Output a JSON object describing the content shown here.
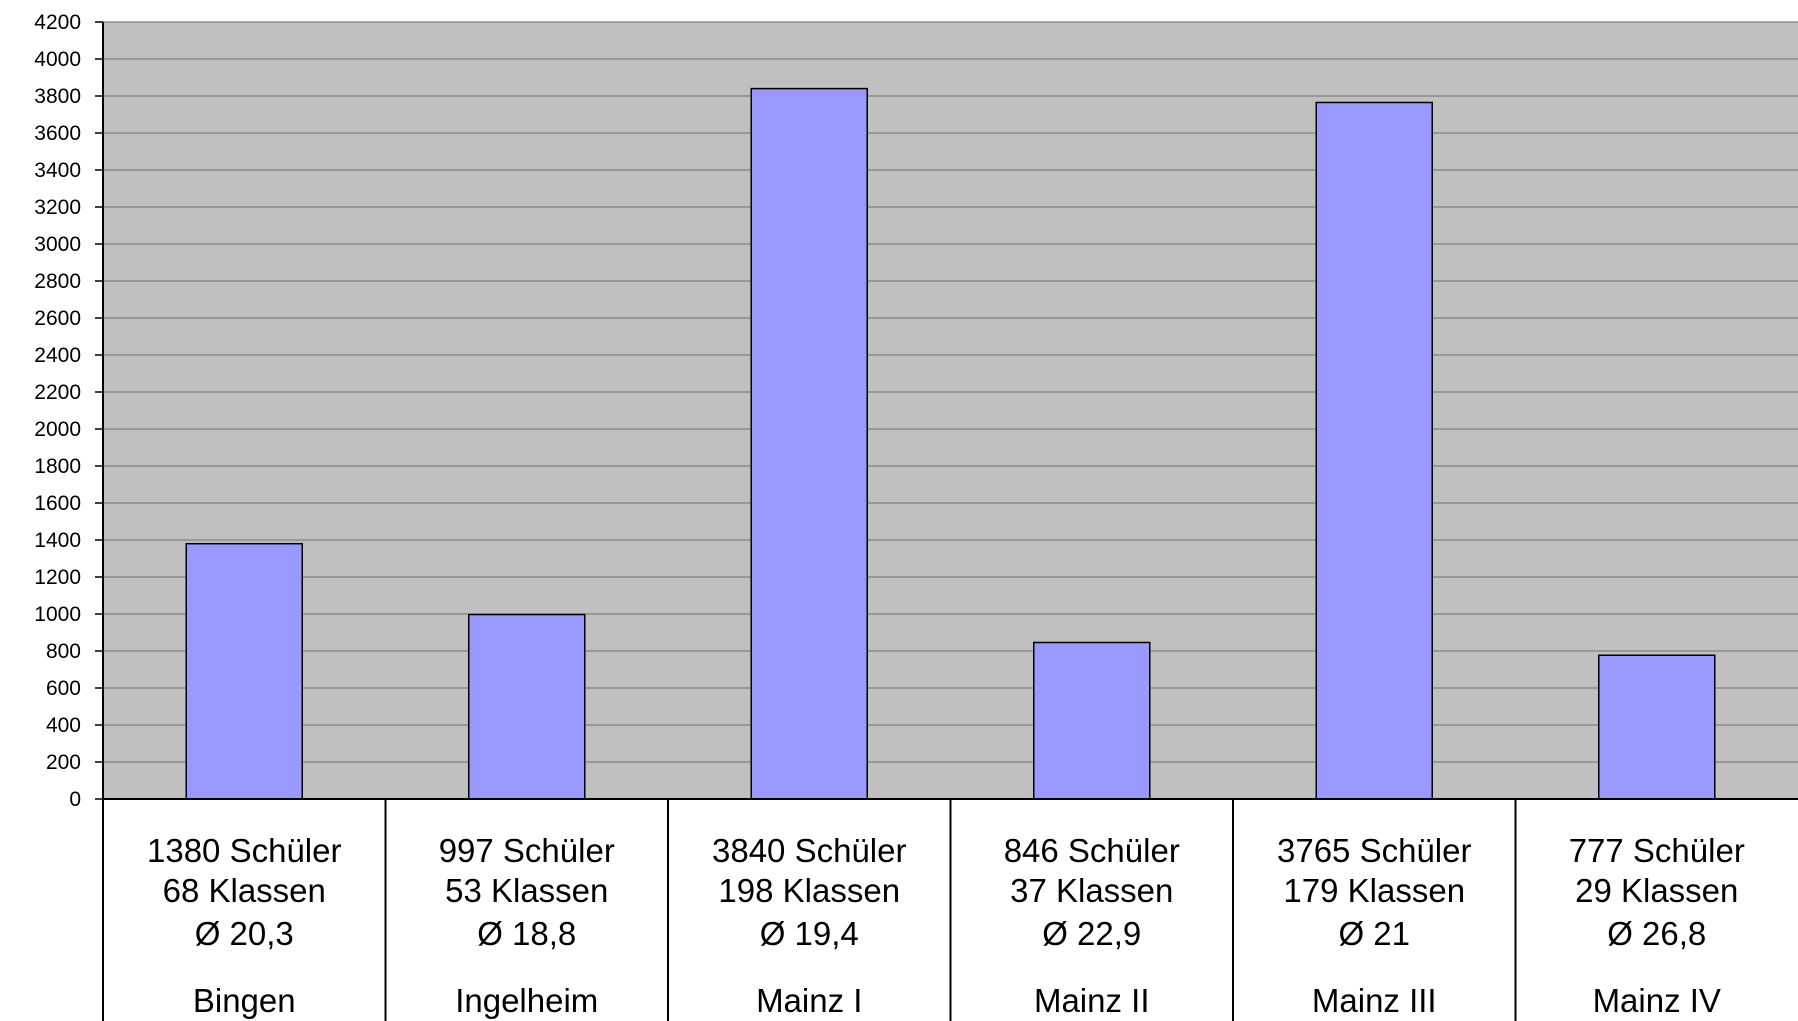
{
  "chart_data": {
    "type": "bar",
    "title": "",
    "xlabel": "",
    "ylabel": "",
    "ylim": [
      0,
      4200
    ],
    "ytick_step": 200,
    "grid": true,
    "legend": "none",
    "categories": [
      "Bingen",
      "Ingelheim",
      "Mainz I",
      "Mainz II",
      "Mainz III",
      "Mainz IV"
    ],
    "values": [
      1380,
      997,
      3840,
      846,
      3765,
      777
    ],
    "category_details": [
      [
        "1380 Schüler",
        "68 Klassen",
        "Ø 20,3"
      ],
      [
        "997 Schüler",
        "53 Klassen",
        "Ø 18,8"
      ],
      [
        "3840 Schüler",
        "198 Klassen",
        "Ø 19,4"
      ],
      [
        "846 Schüler",
        "37 Klassen",
        "Ø 22,9"
      ],
      [
        "3765 Schüler",
        "179 Klassen",
        "Ø 21"
      ],
      [
        "777 Schüler",
        "29 Klassen",
        "Ø 26,8"
      ]
    ],
    "colors": {
      "plot_background": "#c0c0c0",
      "bar_fill": "#9999ff",
      "bar_stroke": "#000000",
      "gridline": "#808080",
      "axis": "#000000"
    }
  }
}
